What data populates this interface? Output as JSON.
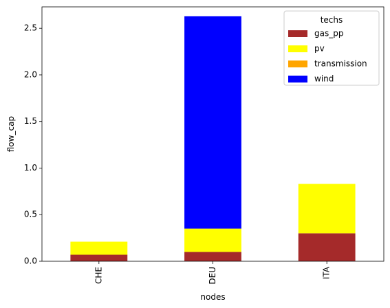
{
  "chart_data": {
    "type": "bar",
    "stacked": true,
    "categories": [
      "CHE",
      "DEU",
      "ITA"
    ],
    "series": [
      {
        "name": "gas_pp",
        "color": "#a52a2a",
        "values": [
          0.07,
          0.1,
          0.3
        ]
      },
      {
        "name": "pv",
        "color": "#ffff00",
        "values": [
          0.14,
          0.25,
          0.53
        ]
      },
      {
        "name": "transmission",
        "color": "#ffa500",
        "values": [
          0.0,
          0.0,
          0.0
        ]
      },
      {
        "name": "wind",
        "color": "#0000ff",
        "values": [
          0.0,
          2.28,
          0.0
        ]
      }
    ],
    "xlabel": "nodes",
    "ylabel": "flow_cap",
    "ylim": [
      0,
      2.73
    ],
    "yticks": [
      0.0,
      0.5,
      1.0,
      1.5,
      2.0,
      2.5
    ],
    "ytick_labels": [
      "0.0",
      "0.5",
      "1.0",
      "1.5",
      "2.0",
      "2.5"
    ],
    "legend_title": "techs",
    "legend_position": "top-right",
    "grid": false
  }
}
